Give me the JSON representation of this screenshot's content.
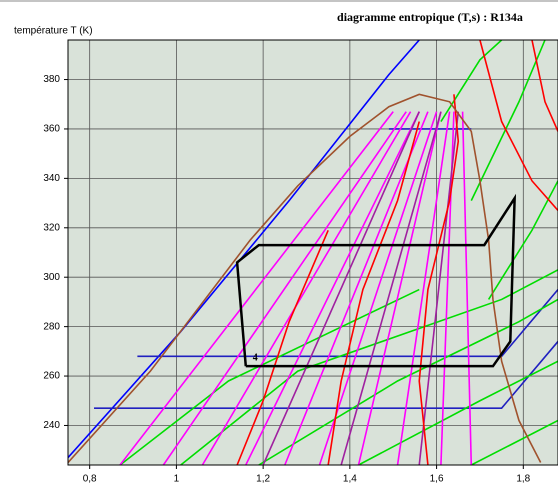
{
  "chart_data": {
    "type": "line",
    "title": "diagramme entropique (T,s) : R134a",
    "y_label": "température T (K)",
    "xlim": [
      0.75,
      1.88
    ],
    "ylim": [
      224,
      396
    ],
    "xticks": [
      {
        "value": 0.8,
        "label": "0,8"
      },
      1,
      {
        "value": 1.2,
        "label": "1,2"
      },
      {
        "value": 1.4,
        "label": "1,4"
      },
      {
        "value": 1.6,
        "label": "1,6"
      },
      {
        "value": 1.8,
        "label": "1,8"
      }
    ],
    "yticks": [
      240,
      260,
      280,
      300,
      320,
      340,
      360,
      380
    ],
    "grid": true,
    "annotations": [
      "4"
    ],
    "series": [
      {
        "color": "#0000ff",
        "x": [
          0.75,
          1.01,
          1.26,
          1.49,
          1.56
        ],
        "values": [
          227,
          278,
          331,
          382,
          396
        ]
      },
      {
        "color": "#2020c0",
        "x": [
          1.49,
          1.68
        ],
        "values": [
          360,
          360
        ]
      },
      {
        "color": "#2020c0",
        "x": [
          0.91,
          1.75,
          1.88
        ],
        "values": [
          268,
          268,
          295
        ]
      },
      {
        "color": "#2020c0",
        "x": [
          0.81,
          1.75,
          1.88
        ],
        "values": [
          247,
          247,
          274
        ]
      },
      {
        "color": "#00dd00",
        "x": [
          1.01,
          1.28,
          1.75,
          1.88
        ],
        "values": [
          224,
          262,
          291,
          303
        ]
      },
      {
        "color": "#00dd00",
        "x": [
          1.19,
          1.51,
          1.79,
          1.88
        ],
        "values": [
          224,
          258,
          282,
          291
        ]
      },
      {
        "color": "#00dd00",
        "x": [
          1.42,
          1.7,
          1.88
        ],
        "values": [
          224,
          250,
          266
        ]
      },
      {
        "color": "#00dd00",
        "x": [
          1.68,
          1.88
        ],
        "values": [
          224,
          242
        ]
      },
      {
        "color": "#00dd00",
        "x": [
          0.87,
          1.12,
          1.56
        ],
        "values": [
          224,
          258,
          295
        ]
      },
      {
        "color": "#00dd00",
        "x": [
          1.61,
          1.7,
          1.75
        ],
        "values": [
          363,
          388,
          396
        ]
      },
      {
        "color": "#00dd00",
        "x": [
          1.68,
          1.79,
          1.85
        ],
        "values": [
          331,
          371,
          396
        ]
      },
      {
        "color": "#00dd00",
        "x": [
          1.72,
          1.82,
          1.88
        ],
        "values": [
          291,
          319,
          339
        ]
      },
      {
        "color": "#ff00ff",
        "x": [
          0.87,
          1.5
        ],
        "values": [
          224,
          367
        ]
      },
      {
        "color": "#ff00ff",
        "x": [
          0.97,
          1.53
        ],
        "values": [
          224,
          367
        ]
      },
      {
        "color": "#ff00ff",
        "x": [
          1.06,
          1.54
        ],
        "values": [
          224,
          367
        ]
      },
      {
        "color": "#ff00ff",
        "x": [
          1.16,
          1.56
        ],
        "values": [
          224,
          367
        ]
      },
      {
        "color": "#ff00ff",
        "x": [
          1.25,
          1.58
        ],
        "values": [
          224,
          367
        ]
      },
      {
        "color": "#ff00ff",
        "x": [
          1.33,
          1.6
        ],
        "values": [
          224,
          367
        ]
      },
      {
        "color": "#ff00ff",
        "x": [
          1.42,
          1.61
        ],
        "values": [
          224,
          367
        ]
      },
      {
        "color": "#ff00ff",
        "x": [
          1.51,
          1.63
        ],
        "values": [
          224,
          367
        ]
      },
      {
        "color": "#ff00ff",
        "x": [
          1.61,
          1.64
        ],
        "values": [
          224,
          367
        ]
      },
      {
        "color": "#ff00ff",
        "x": [
          1.68,
          1.66
        ],
        "values": [
          224,
          367
        ]
      },
      {
        "color": "#a020a0",
        "x": [
          1.2,
          1.56
        ],
        "values": [
          224,
          367
        ]
      },
      {
        "color": "#a020a0",
        "x": [
          1.38,
          1.61
        ],
        "values": [
          224,
          367
        ]
      },
      {
        "color": "#a020a0",
        "x": [
          1.56,
          1.65
        ],
        "values": [
          224,
          367
        ]
      },
      {
        "color": "#ff0000",
        "x": [
          1.35,
          1.38,
          1.43,
          1.51,
          1.56
        ],
        "values": [
          224,
          258,
          295,
          331,
          363
        ]
      },
      {
        "color": "#ff0000",
        "x": [
          1.14,
          1.2,
          1.26,
          1.35
        ],
        "values": [
          224,
          250,
          282,
          319
        ]
      },
      {
        "color": "#ff0000",
        "x": [
          1.58,
          1.56,
          1.58,
          1.63,
          1.65,
          1.64
        ],
        "values": [
          224,
          258,
          295,
          331,
          355,
          374
        ]
      },
      {
        "color": "#ff0000",
        "x": [
          1.7,
          1.75,
          1.82,
          1.88
        ],
        "values": [
          396,
          363,
          339,
          327
        ]
      },
      {
        "color": "#ff0000",
        "x": [
          1.82,
          1.85,
          1.88
        ],
        "values": [
          396,
          371,
          359
        ]
      },
      {
        "color": "#a0522d",
        "x": [
          0.75,
          0.94,
          1.17,
          1.28,
          1.4,
          1.49,
          1.56,
          1.63,
          1.68,
          1.7,
          1.72,
          1.73,
          1.75,
          1.79,
          1.84
        ],
        "values": [
          225,
          262,
          315,
          337,
          357,
          369,
          374,
          371,
          359,
          339,
          315,
          291,
          266,
          242,
          225
        ]
      },
      {
        "color": "#000000",
        "x": [
          1.16,
          1.73,
          1.77,
          1.78,
          1.71,
          1.19,
          1.14,
          1.16
        ],
        "values": [
          264,
          264,
          274,
          332,
          313,
          313,
          306,
          264
        ]
      }
    ]
  }
}
